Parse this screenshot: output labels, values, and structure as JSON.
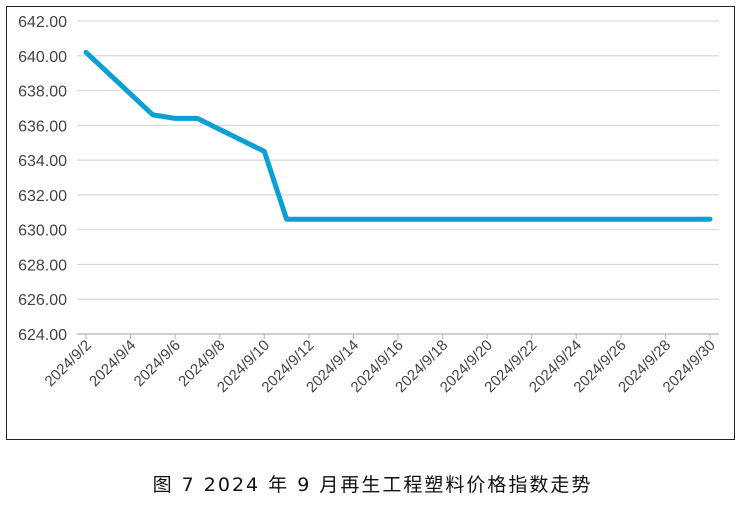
{
  "chart_data": {
    "type": "line",
    "title": "",
    "xlabel": "",
    "ylabel": "",
    "ylim": [
      624,
      642
    ],
    "yticks": [
      "624.00",
      "626.00",
      "628.00",
      "630.00",
      "632.00",
      "634.00",
      "636.00",
      "638.00",
      "640.00",
      "642.00"
    ],
    "x_tick_labels": [
      "2024/9/2",
      "2024/9/4",
      "2024/9/6",
      "2024/9/8",
      "2024/9/10",
      "2024/9/12",
      "2024/9/14",
      "2024/9/16",
      "2024/9/18",
      "2024/9/20",
      "2024/9/22",
      "2024/9/24",
      "2024/9/26",
      "2024/9/28",
      "2024/9/30"
    ],
    "x": [
      "2024/9/2",
      "2024/9/5",
      "2024/9/6",
      "2024/9/7",
      "2024/9/10",
      "2024/9/11",
      "2024/9/12",
      "2024/9/13",
      "2024/9/14",
      "2024/9/15",
      "2024/9/16",
      "2024/9/17",
      "2024/9/18",
      "2024/9/19",
      "2024/9/20",
      "2024/9/21",
      "2024/9/22",
      "2024/9/23",
      "2024/9/24",
      "2024/9/25",
      "2024/9/26",
      "2024/9/27",
      "2024/9/28",
      "2024/9/29",
      "2024/9/30"
    ],
    "series": [
      {
        "name": "",
        "color": "#0aa0d6",
        "values": [
          640.2,
          636.6,
          636.4,
          636.4,
          634.5,
          630.6,
          630.6,
          630.6,
          630.6,
          630.6,
          630.6,
          630.6,
          630.6,
          630.6,
          630.6,
          630.6,
          630.6,
          630.6,
          630.6,
          630.6,
          630.6,
          630.6,
          630.6,
          630.6,
          630.6
        ]
      }
    ],
    "grid": true,
    "legend": "none"
  },
  "caption": "图 7  2024 年 9 月再生工程塑料价格指数走势"
}
